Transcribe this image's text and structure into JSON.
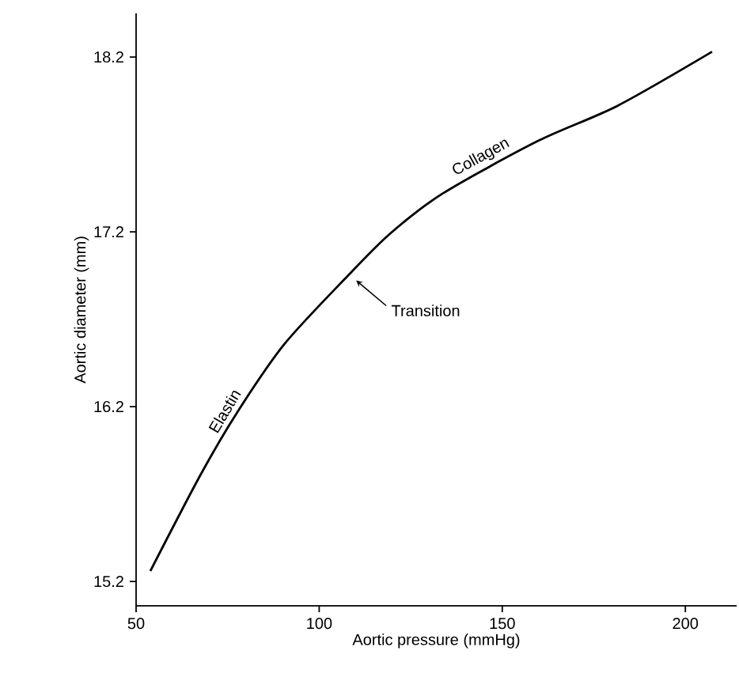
{
  "chart_data": {
    "type": "line",
    "xlabel": "Aortic pressure (mmHg)",
    "ylabel": "Aortic diameter (mm)",
    "x": [
      53.9,
      67.6,
      77.7,
      90.6,
      107.9,
      119.4,
      133.8,
      159.8,
      181.4,
      207.3
    ],
    "values": [
      15.26,
      15.81,
      16.17,
      16.56,
      16.95,
      17.19,
      17.42,
      17.72,
      17.92,
      18.23
    ],
    "color": "#000000",
    "xlim": [
      50,
      214
    ],
    "ylim": [
      15.06,
      18.45
    ],
    "xticks": [
      50,
      100,
      150,
      200
    ],
    "yticks": [
      15.2,
      16.2,
      17.2,
      18.2
    ],
    "annotations": [
      "Elastin",
      "Collagen",
      {
        "text": "Transition",
        "x": 108.8,
        "y": 16.94
      }
    ]
  }
}
